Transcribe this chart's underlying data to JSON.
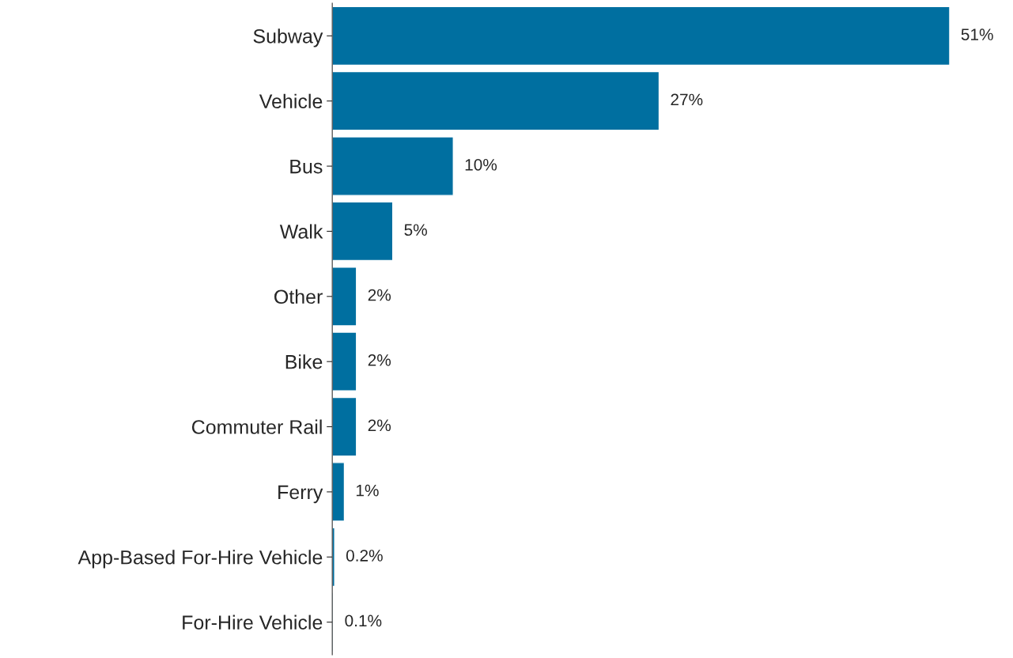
{
  "chart_data": {
    "type": "bar",
    "orientation": "horizontal",
    "categories": [
      "Subway",
      "Vehicle",
      "Bus",
      "Walk",
      "Other",
      "Bike",
      "Commuter Rail",
      "Ferry",
      "App-Based For-Hire Vehicle",
      "For-Hire Vehicle"
    ],
    "values": [
      51,
      27,
      10,
      5,
      2,
      2,
      2,
      1,
      0.2,
      0.1
    ],
    "value_labels": [
      "51%",
      "27%",
      "10%",
      "5%",
      "2%",
      "2%",
      "2%",
      "1%",
      "0.2%",
      "0.1%"
    ],
    "color": "#006fa0",
    "grid": false,
    "tick_labels": "y"
  }
}
